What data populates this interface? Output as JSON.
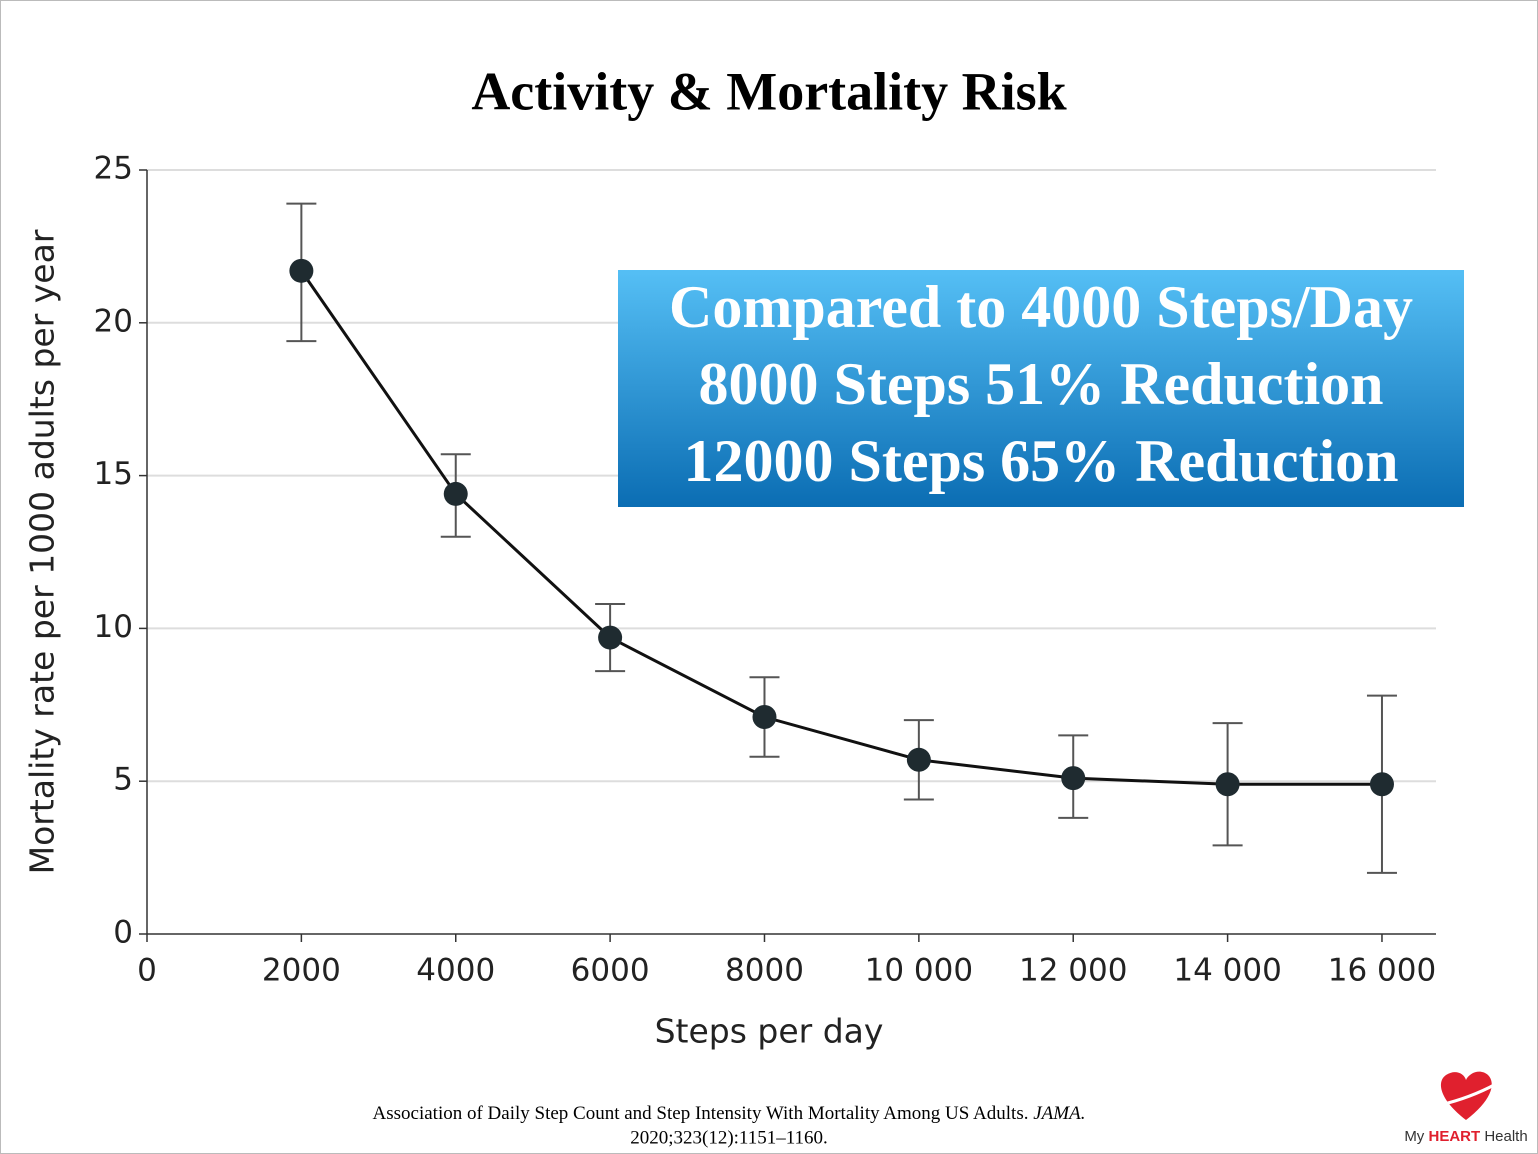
{
  "chart_data": {
    "type": "line",
    "title": "Activity & Mortality Risk",
    "x_label": "Steps per day",
    "y_label": "Mortality rate per 1000 adults per year",
    "x": [
      2000,
      4000,
      6000,
      8000,
      10000,
      12000,
      14000,
      16000
    ],
    "series": [
      {
        "color": "#1f2b30",
        "values": [
          21.7,
          14.4,
          9.7,
          7.1,
          5.7,
          5.1,
          4.9,
          4.9
        ],
        "lower": [
          19.4,
          13.0,
          8.6,
          5.8,
          4.4,
          3.8,
          2.9,
          2.0
        ],
        "upper": [
          23.9,
          15.7,
          10.8,
          8.4,
          7.0,
          6.5,
          6.9,
          7.8
        ]
      }
    ],
    "xlim": [
      0,
      16700
    ],
    "ylim": [
      0,
      25
    ],
    "xticks": [
      0,
      2000,
      4000,
      6000,
      8000,
      {
        "value": 10000,
        "label": "10 000"
      },
      {
        "value": 12000,
        "label": "12 000"
      },
      {
        "value": 14000,
        "label": "14 000"
      },
      {
        "value": 16000,
        "label": "16 000"
      }
    ],
    "yticks": [
      0,
      5,
      10,
      15,
      20,
      25
    ],
    "grid": true,
    "annotation": [
      "Compared to 4000 Steps/Day",
      "8000 Steps 51% Reduction",
      "12000 Steps 65% Reduction"
    ],
    "citation": {
      "text": "Association of Daily Step Count and Step Intensity With Mortality Among US Adults.",
      "journal": "JAMA.",
      "details": "2020;323(12):1151–1160."
    },
    "logo": {
      "prefix": "My",
      "brand": "HEART",
      "suffix": "Health"
    }
  }
}
